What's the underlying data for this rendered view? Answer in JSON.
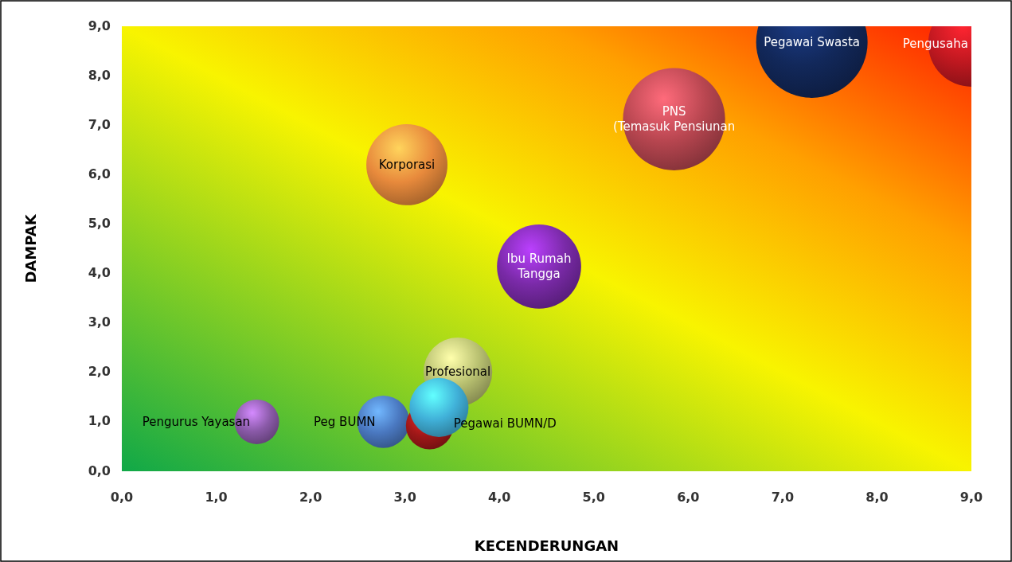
{
  "chart_data": {
    "type": "bubble",
    "xlabel": "KECENDERUNGAN",
    "ylabel": "DAMPAK",
    "xlim": [
      0,
      9
    ],
    "ylim": [
      0,
      9
    ],
    "xticks": [
      {
        "value": 0,
        "label": "0,0"
      },
      {
        "value": 1,
        "label": "1,0"
      },
      {
        "value": 2,
        "label": "2,0"
      },
      {
        "value": 3,
        "label": "3,0"
      },
      {
        "value": 4,
        "label": "4,0"
      },
      {
        "value": 5,
        "label": "5,0"
      },
      {
        "value": 6,
        "label": "6,0"
      },
      {
        "value": 7,
        "label": "7,0"
      },
      {
        "value": 8,
        "label": "8,0"
      },
      {
        "value": 9,
        "label": "9,0"
      }
    ],
    "yticks": [
      {
        "value": 0,
        "label": "0,0"
      },
      {
        "value": 1,
        "label": "1,0"
      },
      {
        "value": 2,
        "label": "2,0"
      },
      {
        "value": 3,
        "label": "3,0"
      },
      {
        "value": 4,
        "label": "4,0"
      },
      {
        "value": 5,
        "label": "5,0"
      },
      {
        "value": 6,
        "label": "6,0"
      },
      {
        "value": 7,
        "label": "7,0"
      },
      {
        "value": 8,
        "label": "8,0"
      },
      {
        "value": 9,
        "label": "9,0"
      }
    ],
    "grid": false,
    "legend": false,
    "series": [
      {
        "name": "Korporasi",
        "color": "#e88a3c",
        "x": [
          3.02
        ],
        "values": [
          6.2
        ],
        "sizes": [
          0.53
        ]
      },
      {
        "name": "PNS\n(Temasuk Pensiunan",
        "color": "#b84650",
        "x": [
          5.85
        ],
        "values": [
          7.12
        ],
        "sizes": [
          0.84
        ]
      },
      {
        "name": "Pegawai Swasta",
        "color": "#12285a",
        "x": [
          7.31
        ],
        "values": [
          8.68
        ],
        "sizes": [
          1
        ]
      },
      {
        "name": "Pengusaha",
        "color": "#c01820",
        "x": [
          9.0
        ],
        "values": [
          8.65
        ],
        "sizes": [
          0.6
        ]
      },
      {
        "name": "Ibu Rumah\nTangga",
        "color": "#7a2aa8",
        "x": [
          4.42
        ],
        "values": [
          4.14
        ],
        "sizes": [
          0.57
        ]
      },
      {
        "name": "Profesional",
        "color": "#b8c070",
        "x": [
          3.56
        ],
        "values": [
          2.01
        ],
        "sizes": [
          0.38
        ]
      },
      {
        "name": "Pengurus Yayasan",
        "color": "#8a5aa8",
        "x": [
          1.43
        ],
        "values": [
          1.0
        ],
        "sizes": [
          0.16
        ]
      },
      {
        "name": "Peg BUMN",
        "color": "#4a78c0",
        "x": [
          2.77
        ],
        "values": [
          1.0
        ],
        "sizes": [
          0.22
        ]
      },
      {
        "color": "#a01818",
        "x": [
          3.26
        ],
        "values": [
          0.92
        ],
        "sizes": [
          0.18
        ]
      },
      {
        "name": "Pegawai BUMN/D",
        "color": "#40b0d8",
        "x": [
          3.36
        ],
        "values": [
          1.29
        ],
        "sizes": [
          0.28
        ]
      }
    ]
  }
}
